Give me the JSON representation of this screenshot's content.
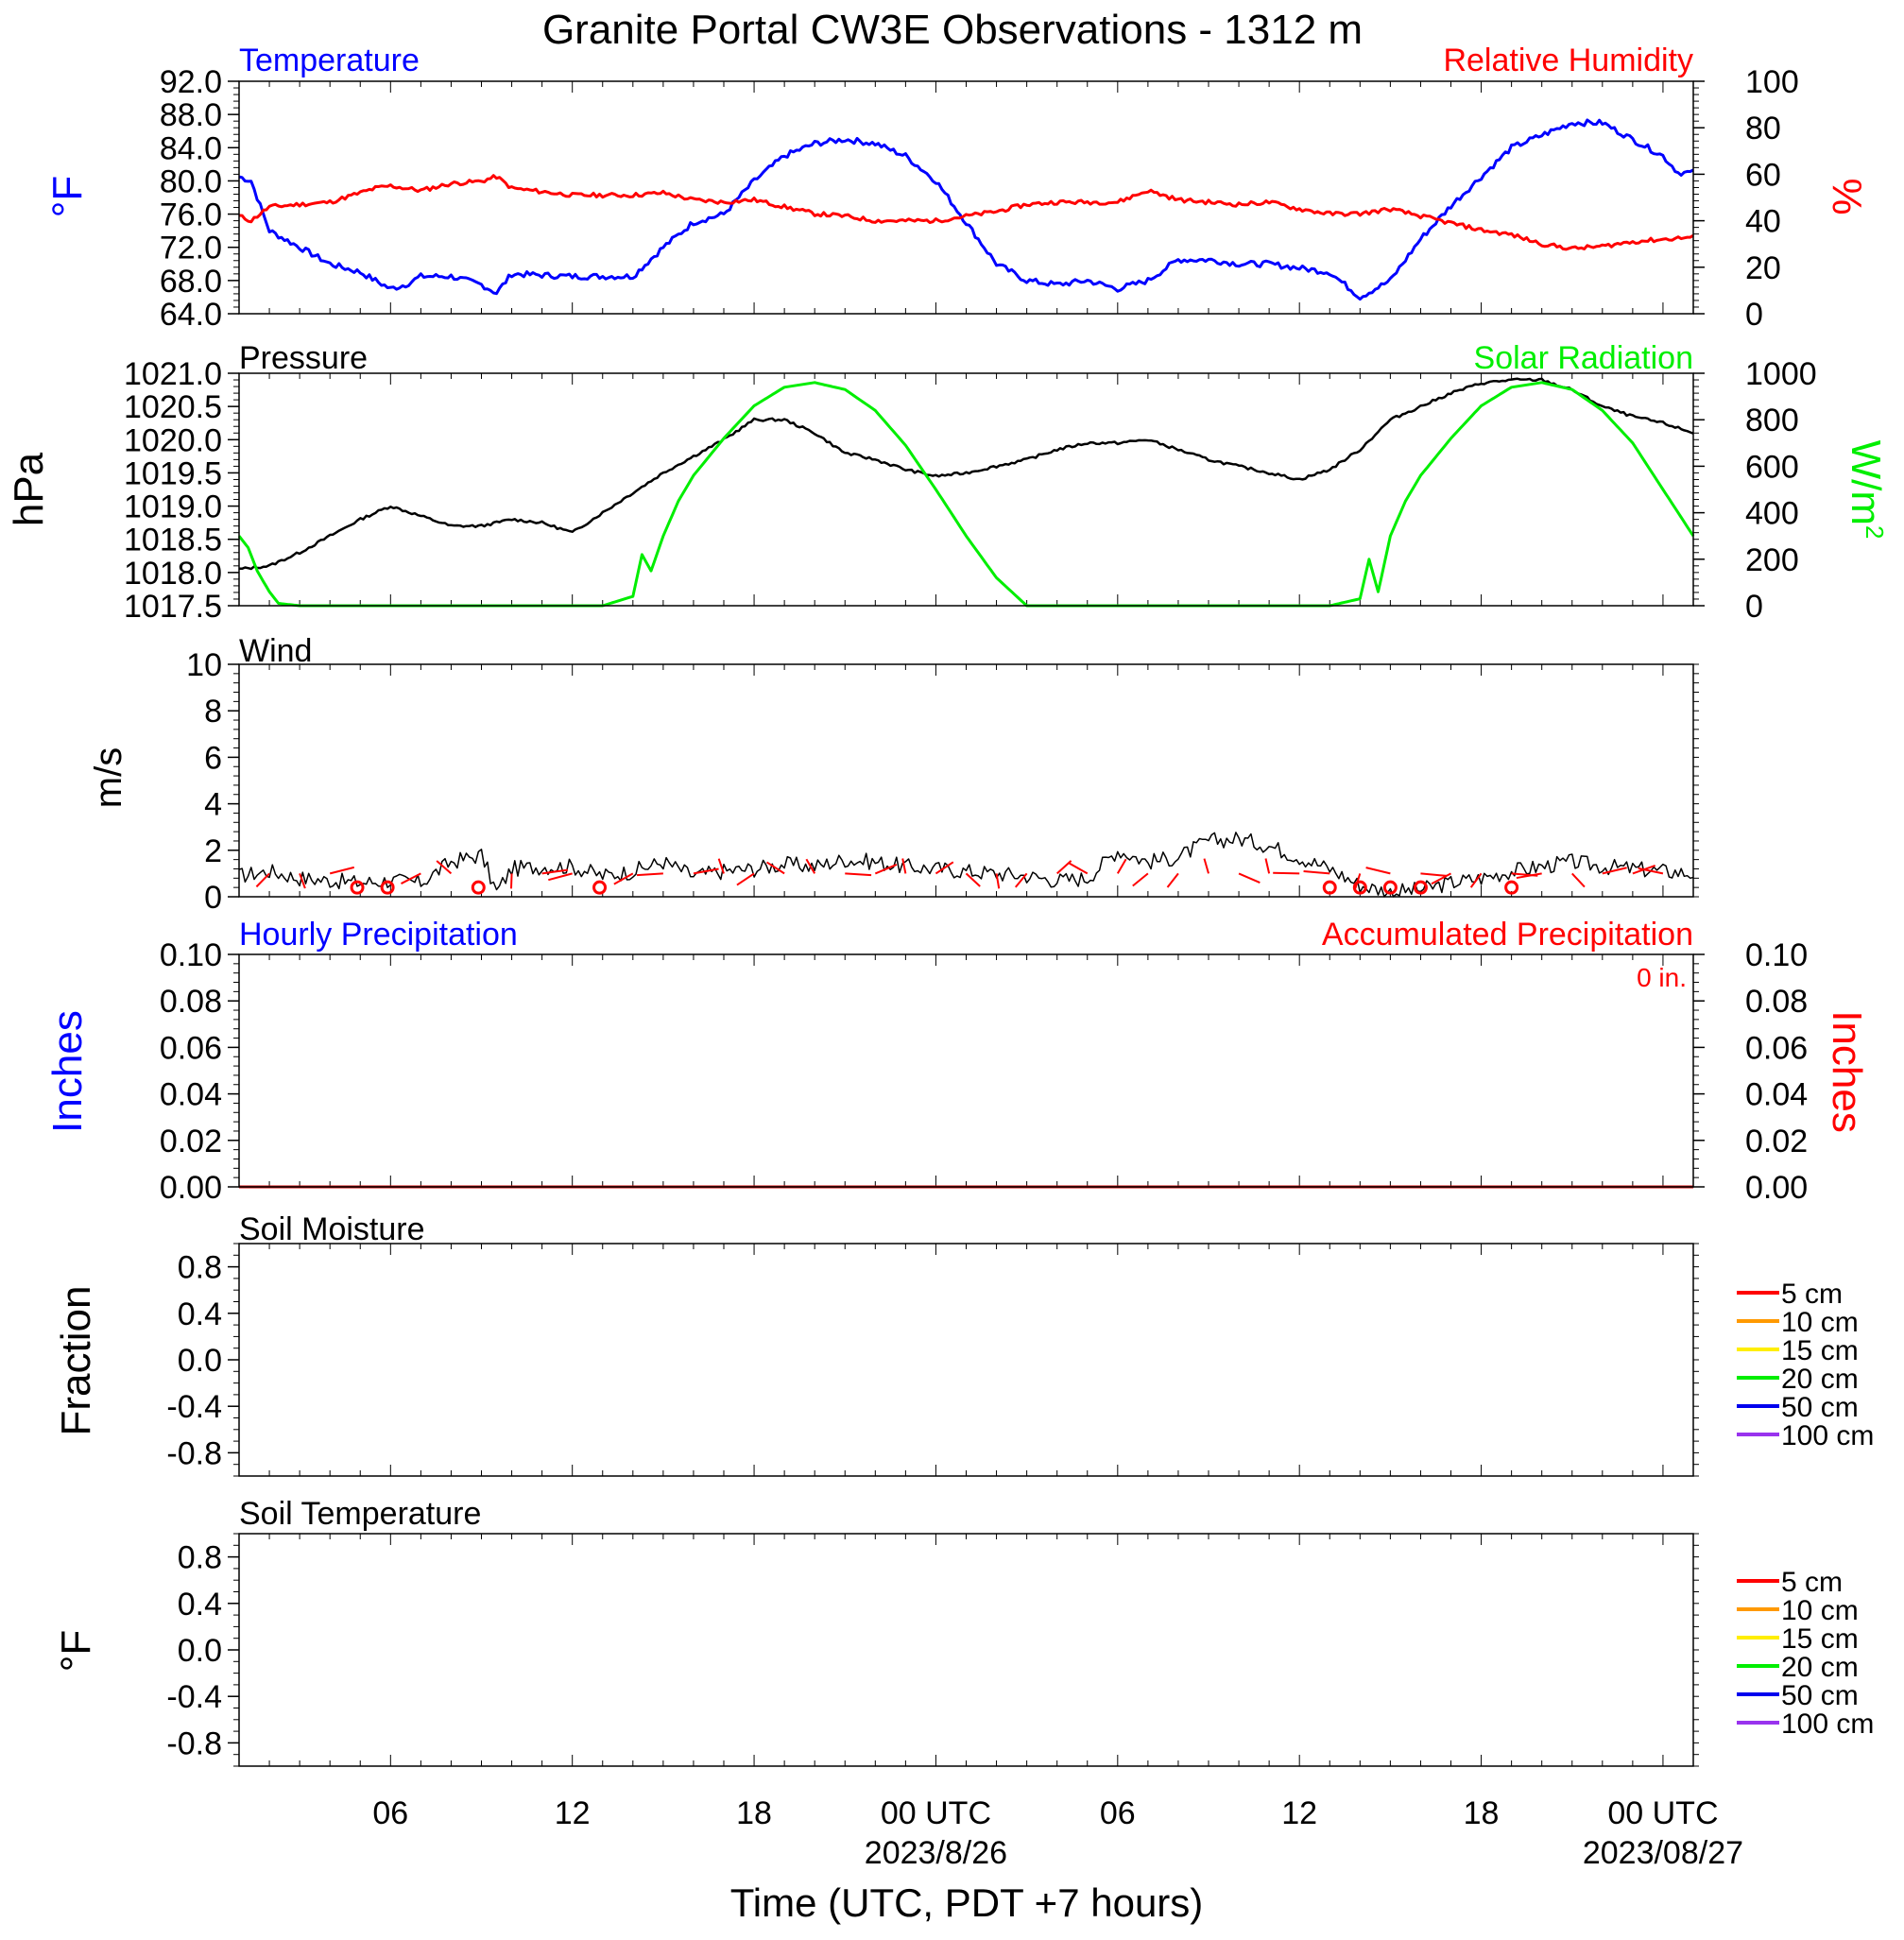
{
  "title": "Granite Portal CW3E Observations - 1312 m",
  "colors": {
    "blue": "#0000ff",
    "red": "#ff0000",
    "green": "#00ee00",
    "black": "#000000",
    "precip": "#cc0000"
  },
  "xaxis": {
    "label": "Time (UTC, PDT +7 hours)",
    "ticks": [
      {
        "hour": 6,
        "label": "06",
        "sub": ""
      },
      {
        "hour": 12,
        "label": "12",
        "sub": ""
      },
      {
        "hour": 18,
        "label": "18",
        "sub": ""
      },
      {
        "hour": 24,
        "label": "00 UTC",
        "sub": "2023/8/26"
      },
      {
        "hour": 30,
        "label": "06",
        "sub": ""
      },
      {
        "hour": 36,
        "label": "12",
        "sub": ""
      },
      {
        "hour": 42,
        "label": "18",
        "sub": ""
      },
      {
        "hour": 48,
        "label": "00 UTC",
        "sub": "2023/08/27"
      }
    ]
  },
  "chart_data": [
    {
      "type": "line",
      "panel": "temperature_humidity",
      "title_left": "Temperature",
      "title_right": "Relative Humidity",
      "ylabel_left": "°F",
      "ylabel_right": "%",
      "ylim_left": [
        64,
        92
      ],
      "ylim_right": [
        0,
        100
      ],
      "ytick_labels_left": [
        "92.0",
        "88.0",
        "84.0",
        "80.0",
        "76.0",
        "72.0",
        "68.0",
        "64.0"
      ],
      "ytick_labels_right": [
        "100",
        "80",
        "60",
        "40",
        "20",
        "0"
      ],
      "xlim_hours": [
        1,
        49
      ],
      "series": [
        {
          "name": "Temperature",
          "axis": "left",
          "color": "#0000ff",
          "x": [
            1,
            1.4,
            2,
            3,
            4,
            5,
            5.5,
            6,
            6.5,
            7,
            8,
            9,
            9.5,
            10,
            12,
            13,
            14,
            15,
            16,
            17,
            18,
            19,
            20,
            21,
            22,
            23,
            24,
            25,
            26,
            27,
            28,
            29,
            30,
            31,
            32,
            33,
            34,
            35,
            36,
            37,
            38,
            39,
            40,
            41,
            42,
            43,
            44,
            45,
            46,
            47,
            48,
            48.5,
            49
          ],
          "y": [
            80.5,
            80,
            74,
            72,
            70,
            69,
            68,
            67,
            67.5,
            68.5,
            68.5,
            67.5,
            66.5,
            68.8,
            68.5,
            68.5,
            68.5,
            72,
            75,
            76,
            80,
            83,
            84.5,
            85,
            84.5,
            83,
            80,
            75,
            70,
            68,
            67.5,
            68,
            67,
            68,
            70.5,
            70.5,
            70,
            70,
            69.5,
            69,
            66,
            68,
            73,
            77,
            80.5,
            84,
            85.5,
            87,
            87,
            85,
            83,
            81,
            81
          ]
        },
        {
          "name": "Relative Humidity",
          "axis": "right",
          "color": "#ff0000",
          "x": [
            1,
            1.4,
            2,
            3,
            4,
            5,
            5.5,
            6,
            7,
            8,
            9,
            9.5,
            10,
            12,
            13,
            14,
            15,
            16,
            17,
            18,
            19,
            20,
            21,
            22,
            23,
            24,
            25,
            26,
            27,
            28,
            29,
            30,
            31,
            32,
            33,
            34,
            35,
            36,
            37,
            38,
            39,
            40,
            41,
            42,
            43,
            44,
            45,
            46,
            47,
            48,
            49
          ],
          "y": [
            42,
            40,
            46,
            47,
            48,
            52,
            54,
            55,
            53,
            56,
            57,
            59,
            54,
            51,
            51,
            51,
            52,
            49,
            48,
            49,
            46,
            43,
            42,
            40,
            40,
            40,
            42,
            44,
            47,
            48,
            48,
            48,
            53,
            49,
            48,
            47,
            48,
            45,
            43,
            43,
            45,
            42,
            39,
            36,
            34,
            30,
            28,
            29,
            31,
            32,
            33
          ]
        }
      ]
    },
    {
      "type": "line",
      "panel": "pressure_solar",
      "title_left": "Pressure",
      "title_right": "Solar Radiation",
      "ylabel_left": "hPa",
      "ylabel_right": "W/m2",
      "ylim_left": [
        1017.5,
        1021.0
      ],
      "ylim_right": [
        0,
        1000
      ],
      "ytick_labels_left": [
        "1021.0",
        "1020.5",
        "1020.0",
        "1019.5",
        "1019.0",
        "1018.5",
        "1018.0",
        "1017.5"
      ],
      "ytick_labels_right": [
        "1000",
        "800",
        "600",
        "400",
        "200",
        "0"
      ],
      "xlim_hours": [
        1,
        49
      ],
      "series": [
        {
          "name": "Pressure",
          "axis": "left",
          "color": "#000000",
          "x": [
            1,
            2,
            3,
            4,
            5,
            6,
            7,
            8,
            9,
            10,
            11,
            12,
            13,
            14,
            15,
            16,
            17,
            18,
            19,
            20,
            21,
            22,
            23,
            24,
            25,
            26,
            27,
            28,
            29,
            30,
            31,
            32,
            33,
            34,
            35,
            36,
            37,
            38,
            39,
            40,
            41,
            42,
            43,
            44,
            45,
            46,
            47,
            48,
            49
          ],
          "y": [
            1018.05,
            1018.1,
            1018.3,
            1018.55,
            1018.8,
            1019.0,
            1018.85,
            1018.7,
            1018.7,
            1018.8,
            1018.75,
            1018.6,
            1018.9,
            1019.2,
            1019.5,
            1019.75,
            1020.0,
            1020.3,
            1020.3,
            1020.1,
            1019.8,
            1019.7,
            1019.55,
            1019.45,
            1019.5,
            1019.6,
            1019.7,
            1019.85,
            1019.95,
            1019.95,
            1020.0,
            1019.85,
            1019.7,
            1019.6,
            1019.5,
            1019.4,
            1019.55,
            1019.85,
            1020.3,
            1020.5,
            1020.7,
            1020.85,
            1020.9,
            1020.9,
            1020.75,
            1020.5,
            1020.35,
            1020.25,
            1020.1
          ]
        },
        {
          "name": "Solar Radiation",
          "axis": "right",
          "color": "#00ee00",
          "x": [
            1,
            1.3,
            1.6,
            2,
            2.3,
            3,
            4,
            13,
            14,
            14.3,
            14.6,
            15,
            15.5,
            16,
            17,
            18,
            19,
            20,
            21,
            22,
            23,
            24,
            25,
            26,
            27,
            28,
            37,
            38,
            38.3,
            38.6,
            39,
            39.5,
            40,
            41,
            42,
            43,
            44,
            45,
            46,
            47,
            48,
            49
          ],
          "y": [
            300,
            250,
            150,
            60,
            10,
            0,
            0,
            0,
            40,
            220,
            150,
            300,
            450,
            560,
            720,
            860,
            940,
            960,
            930,
            840,
            690,
            500,
            300,
            120,
            0,
            0,
            0,
            30,
            200,
            60,
            300,
            450,
            560,
            720,
            860,
            940,
            960,
            930,
            840,
            700,
            500,
            300
          ]
        }
      ]
    },
    {
      "type": "line",
      "panel": "wind",
      "title": "Wind",
      "ylabel": "m/s",
      "ylim": [
        0,
        10
      ],
      "ytick_labels": [
        "10",
        "8",
        "6",
        "4",
        "2",
        "0"
      ],
      "xlim_hours": [
        1,
        49
      ],
      "series": [
        {
          "name": "Wind",
          "color": "#000000",
          "x": [
            1,
            2,
            3,
            4,
            5,
            6,
            7,
            8,
            9,
            9.5,
            10,
            11,
            12,
            13,
            14,
            15,
            16,
            17,
            18,
            19,
            20,
            21,
            22,
            23,
            24,
            25,
            26,
            27,
            28,
            29,
            30,
            31,
            32,
            33,
            34,
            35,
            36,
            37,
            38,
            39,
            40,
            41,
            42,
            43,
            44,
            45,
            46,
            47,
            48,
            49
          ],
          "y": [
            0.9,
            1.1,
            0.8,
            0.7,
            0.6,
            0.7,
            0.6,
            1.5,
            1.8,
            0.2,
            1.2,
            1.3,
            1.3,
            0.9,
            1.1,
            1.5,
            0.9,
            1.1,
            1.2,
            1.4,
            1.3,
            1.6,
            1.5,
            1.3,
            1.2,
            1.1,
            1.0,
            0.9,
            0.7,
            0.8,
            2.0,
            1.5,
            1.7,
            2.4,
            2.5,
            2.2,
            1.7,
            1.2,
            0.5,
            0.2,
            0.3,
            0.6,
            0.8,
            1.1,
            1.3,
            1.5,
            1.3,
            1.2,
            1.1,
            1.0
          ]
        }
      ],
      "calm_markers_hours": [
        4.9,
        5.9,
        8.9,
        12.9,
        37.0,
        38.0,
        39.0,
        40.0,
        43.0
      ]
    },
    {
      "type": "line",
      "panel": "precipitation",
      "title_left": "Hourly Precipitation",
      "title_right": "Accumulated Precipitation",
      "annotation": "0 in.",
      "ylabel_left": "Inches",
      "ylabel_right": "Inches",
      "ylim": [
        0,
        0.1
      ],
      "ytick_labels": [
        "0.10",
        "0.08",
        "0.06",
        "0.04",
        "0.02",
        "0.00"
      ],
      "xlim_hours": [
        1,
        49
      ],
      "series": [
        {
          "name": "Accumulated Precipitation",
          "color": "#cc0000",
          "x": [
            1,
            49
          ],
          "y": [
            0,
            0
          ]
        }
      ]
    },
    {
      "type": "line",
      "panel": "soil_moisture",
      "title": "Soil Moisture",
      "ylabel": "Fraction",
      "ylim": [
        -1,
        1
      ],
      "ytick_labels": [
        "0.8",
        "0.4",
        "0.0",
        "-0.4",
        "-0.8"
      ],
      "legend": [
        {
          "label": "5 cm",
          "color": "#ff0000"
        },
        {
          "label": "10 cm",
          "color": "#ff9900"
        },
        {
          "label": "15 cm",
          "color": "#ffee00"
        },
        {
          "label": "20 cm",
          "color": "#00ee00"
        },
        {
          "label": "50 cm",
          "color": "#0000ee"
        },
        {
          "label": "100 cm",
          "color": "#9933ee"
        }
      ],
      "series": []
    },
    {
      "type": "line",
      "panel": "soil_temperature",
      "title": "Soil Temperature",
      "ylabel": "°F",
      "ylim": [
        -1,
        1
      ],
      "ytick_labels": [
        "0.8",
        "0.4",
        "0.0",
        "-0.4",
        "-0.8"
      ],
      "legend": [
        {
          "label": "5 cm",
          "color": "#ff0000"
        },
        {
          "label": "10 cm",
          "color": "#ff9900"
        },
        {
          "label": "15 cm",
          "color": "#ffee00"
        },
        {
          "label": "20 cm",
          "color": "#00ee00"
        },
        {
          "label": "50 cm",
          "color": "#0000ee"
        },
        {
          "label": "100 cm",
          "color": "#9933ee"
        }
      ],
      "series": []
    }
  ]
}
